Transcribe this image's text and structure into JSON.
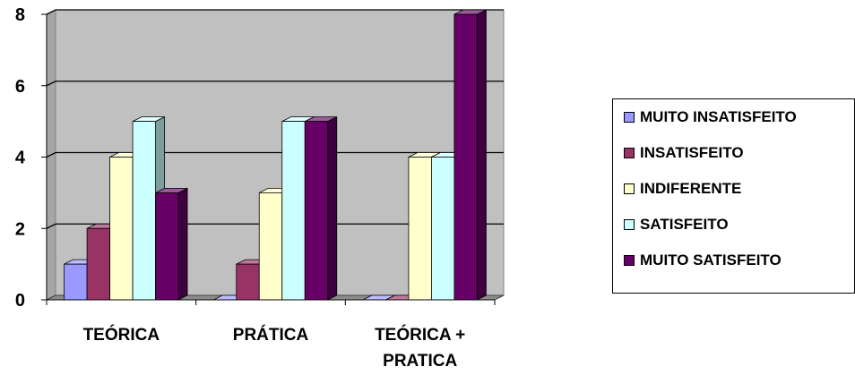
{
  "chart_data": {
    "type": "bar",
    "title": "",
    "xlabel": "",
    "ylabel": "",
    "categories": [
      "TEÓRICA",
      "PRÁTICA",
      "TEÓRICA + PRATICA"
    ],
    "category_lines": [
      [
        "TEÓRICA"
      ],
      [
        "PRÁTICA"
      ],
      [
        "TEÓRICA +",
        "PRATICA"
      ]
    ],
    "series": [
      {
        "name": "MUITO INSATISFEITO",
        "color": "#9999ff",
        "values": [
          1,
          0,
          0
        ]
      },
      {
        "name": "INSATISFEITO",
        "color": "#993366",
        "values": [
          2,
          1,
          0
        ]
      },
      {
        "name": "INDIFERENTE",
        "color": "#ffffcc",
        "values": [
          4,
          3,
          4
        ]
      },
      {
        "name": "SATISFEITO",
        "color": "#ccffff",
        "values": [
          5,
          5,
          4
        ]
      },
      {
        "name": "MUITO SATISFEITO",
        "color": "#660066",
        "values": [
          3,
          5,
          8
        ]
      }
    ],
    "ylim": [
      0,
      8
    ],
    "yticks": [
      0,
      2,
      4,
      6,
      8
    ],
    "grid": true,
    "legend_position": "right",
    "plot_background": "#c0c0c0",
    "style": "3d-clustered-column"
  }
}
